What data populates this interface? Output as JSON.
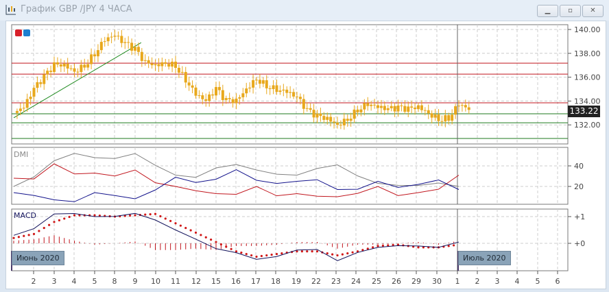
{
  "window": {
    "title": "График GBP /JPY  4 ЧАСА",
    "buttons": [
      "minimize",
      "restore",
      "close"
    ]
  },
  "panels": {
    "dmi_label": "DMI",
    "macd_label": "MACD"
  },
  "colors": {
    "candle": "#e8a81c",
    "trendline": "#1e8a1e",
    "resistance": "#c0141c",
    "support": "#1e7a1e",
    "adx": "#808080",
    "plus_di": "#c0141c",
    "minus_di": "#10108a",
    "macd": "#10105a",
    "signal": "#d01818",
    "histogram": "#c0141c"
  },
  "price_axis": {
    "ticks": [
      "140.00",
      "138.00",
      "136.00",
      "134.00",
      "132.00"
    ],
    "current_price": "133.22"
  },
  "dmi_axis": {
    "ticks": [
      "40",
      "20"
    ]
  },
  "macd_axis": {
    "ticks": [
      "+1",
      "+0"
    ]
  },
  "month_labels": [
    "Июнь 2020",
    "Июль 2020"
  ],
  "x_axis": {
    "ticks": [
      "2",
      "3",
      "4",
      "5",
      "8",
      "9",
      "10",
      "11",
      "12",
      "15",
      "16",
      "17",
      "18",
      "19",
      "22",
      "23",
      "24",
      "25",
      "26",
      "29",
      "30",
      "1",
      "2",
      "3",
      "4",
      "5",
      "6"
    ]
  },
  "chart_data": {
    "type": "candlestick",
    "title": "График GBP /JPY  4 ЧАСА",
    "ylim": [
      130.5,
      140.5
    ],
    "price_close_half_day_steps": [
      133.0,
      133.5,
      135,
      136,
      137,
      137,
      136.5,
      137,
      138,
      139.2,
      139.5,
      138.8,
      138.3,
      137.2,
      137,
      137.2,
      137,
      135.8,
      134.6,
      134,
      135,
      134,
      134,
      135,
      135.9,
      135.3,
      135,
      134.8,
      134.3,
      133.2,
      132.7,
      132.5,
      132,
      132.5,
      133.3,
      133.8,
      133.5,
      133.3,
      133.4,
      133.3,
      133.5,
      133.0,
      132.5,
      132.6,
      133.8,
      133.3
    ],
    "horizontal_levels": {
      "resistance": [
        137.18,
        136.26,
        133.85
      ],
      "support": [
        132.93,
        132.18,
        130.86
      ]
    },
    "trendline": {
      "from": [
        0,
        132.6
      ],
      "to": [
        6.3,
        138.9
      ]
    },
    "dmi": {
      "ylim": [
        3,
        58
      ],
      "adx": [
        20,
        28,
        45,
        53,
        48,
        47,
        52,
        40,
        31,
        30,
        38,
        40,
        36,
        33,
        31,
        37,
        41,
        30,
        23,
        22,
        21,
        22,
        20
      ],
      "plus_di": [
        28,
        26,
        42,
        33,
        33,
        30,
        36,
        23,
        20,
        17,
        13,
        11,
        20,
        12,
        13,
        10,
        10,
        13,
        20,
        12,
        14,
        16,
        31
      ],
      "minus_di": [
        14,
        10,
        7,
        6,
        14,
        11,
        8,
        16,
        29,
        25,
        27,
        35,
        26,
        24,
        25,
        26,
        17,
        17,
        25,
        20,
        22,
        25,
        17
      ]
    },
    "macd": {
      "ylim": [
        -1.0,
        1.3
      ],
      "macd": [
        0.3,
        0.5,
        1.1,
        1.15,
        1.0,
        1.0,
        1.12,
        0.85,
        0.5,
        0.2,
        -0.2,
        -0.4,
        -0.6,
        -0.45,
        -0.25,
        -0.25,
        -0.65,
        -0.35,
        -0.15,
        -0.05,
        -0.1,
        -0.2,
        0.05
      ],
      "signal": [
        0.2,
        0.35,
        0.8,
        1.05,
        1.05,
        1.0,
        1.05,
        1.1,
        0.75,
        0.4,
        0.05,
        -0.3,
        -0.5,
        -0.4,
        -0.3,
        -0.3,
        -0.45,
        -0.3,
        -0.1,
        -0.05,
        -0.15,
        -0.15,
        -0.05
      ]
    }
  }
}
